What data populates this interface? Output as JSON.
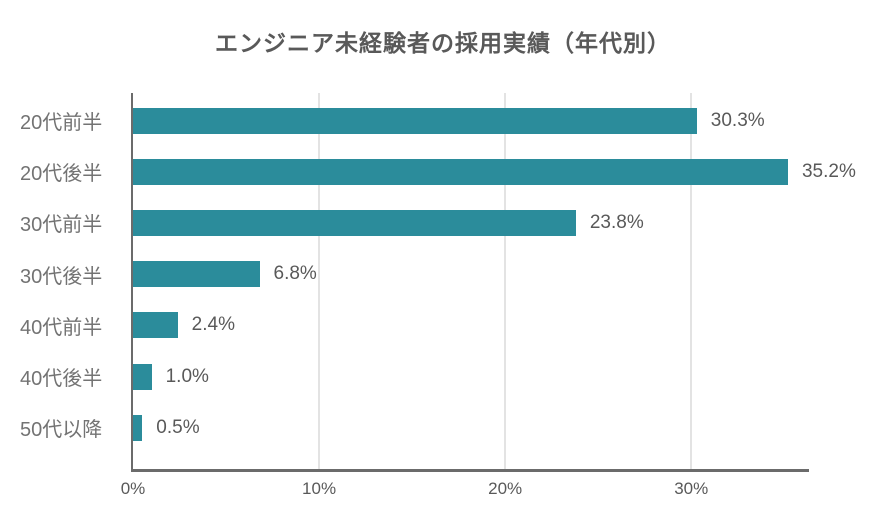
{
  "title": "エンジニア未経験者の採用実績（年代別）",
  "chart_data": {
    "type": "bar",
    "orientation": "horizontal",
    "title": "エンジニア未経験者の採用実績（年代別）",
    "categories": [
      "20代前半",
      "20代後半",
      "30代前半",
      "30代後半",
      "40代前半",
      "40代後半",
      "50代以降"
    ],
    "values": [
      30.3,
      35.2,
      23.8,
      6.8,
      2.4,
      1.0,
      0.5
    ],
    "value_labels": [
      "30.3%",
      "35.2%",
      "23.8%",
      "6.8%",
      "2.4%",
      "1.0%",
      "0.5%"
    ],
    "x_tick_labels": [
      "0%",
      "10%",
      "20%",
      "30%"
    ],
    "x_tick_values": [
      0,
      10,
      20,
      30
    ],
    "xlim": [
      0,
      36.33
    ],
    "grid": true,
    "legend": false,
    "bar_color": "#2b8c9b"
  },
  "colors": {
    "background": "#ffffff",
    "bar": "#2b8c9b",
    "title_text": "#595959",
    "category_text": "#737373",
    "value_text": "#595959",
    "tick_text": "#595959",
    "axis_line": "#6b6b6b",
    "gridline": "#e3e3e3"
  }
}
